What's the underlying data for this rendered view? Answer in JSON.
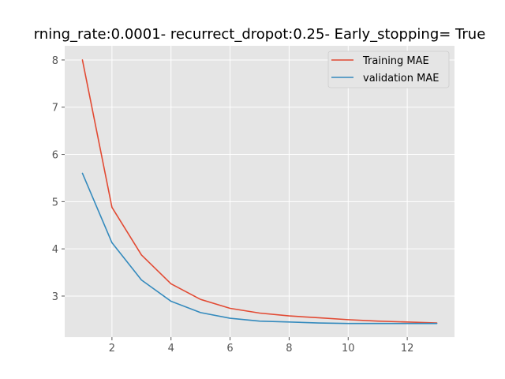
{
  "chart_data": {
    "type": "line",
    "title": "rning_rate:0.0001- recurrect_dropot:0.25- Early_stopping= True",
    "xlabel": "",
    "ylabel": "",
    "x": [
      1,
      2,
      3,
      4,
      5,
      6,
      7,
      8,
      9,
      10,
      11,
      12,
      13
    ],
    "xlim": [
      0.4,
      13.6
    ],
    "ylim": [
      2.13,
      8.3
    ],
    "xticks": [
      2,
      4,
      6,
      8,
      10,
      12
    ],
    "yticks": [
      3,
      4,
      5,
      6,
      7,
      8
    ],
    "grid": true,
    "legend_position": "top-right",
    "series": [
      {
        "name": "Training MAE",
        "color": "#E24A33",
        "values": [
          8.0,
          4.88,
          3.87,
          3.26,
          2.93,
          2.74,
          2.64,
          2.58,
          2.54,
          2.5,
          2.47,
          2.45,
          2.43
        ]
      },
      {
        "name": "validation MAE",
        "color": "#348ABD",
        "values": [
          5.6,
          4.13,
          3.34,
          2.89,
          2.65,
          2.53,
          2.47,
          2.45,
          2.43,
          2.42,
          2.42,
          2.42,
          2.42
        ]
      }
    ]
  }
}
